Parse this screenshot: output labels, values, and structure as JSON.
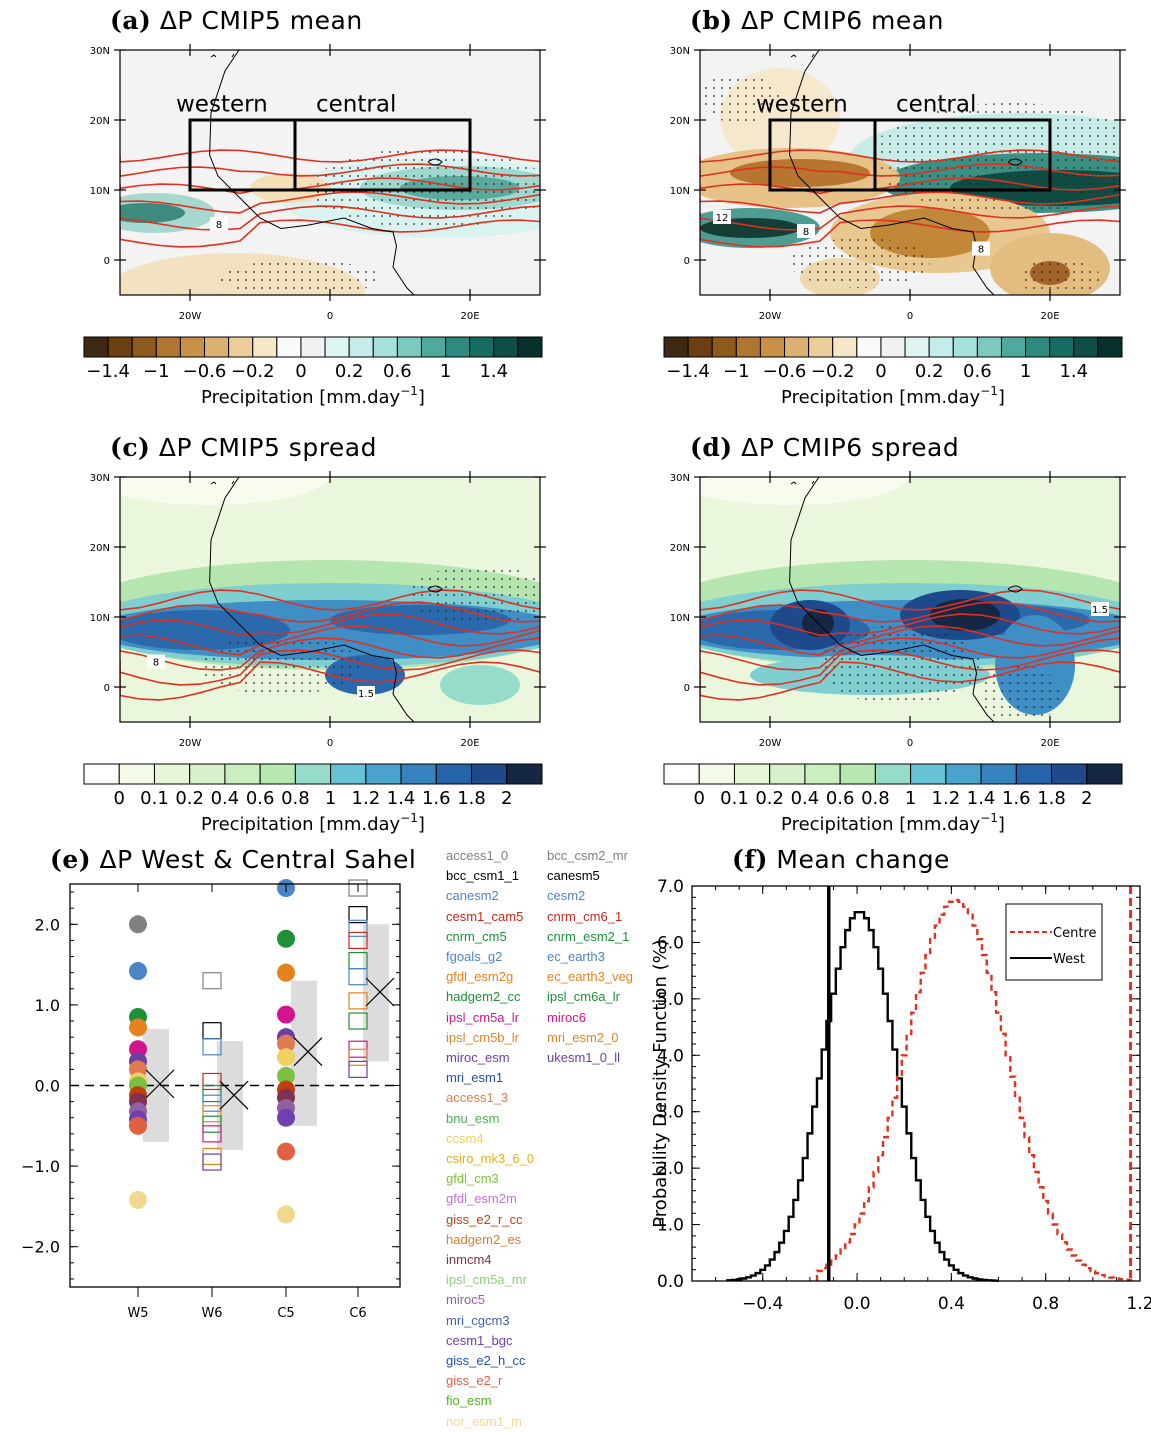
{
  "panels": {
    "a": {
      "letter": "(a)",
      "title": "ΔP CMIP5 mean"
    },
    "b": {
      "letter": "(b)",
      "title": "ΔP CMIP6 mean"
    },
    "c": {
      "letter": "(c)",
      "title": "ΔP CMIP5 spread"
    },
    "d": {
      "letter": "(d)",
      "title": "ΔP CMIP6 spread"
    },
    "e": {
      "letter": "(e)",
      "title": "ΔP West & Central Sahel"
    },
    "f": {
      "letter": "(f)",
      "title": "Mean change"
    }
  },
  "map": {
    "lat_labels": [
      "30N",
      "20N",
      "10N",
      "0"
    ],
    "lon_labels": [
      "20W",
      "0",
      "20E"
    ],
    "box_labels": {
      "western": "western",
      "central": "central"
    },
    "contour_labels": {
      "a": [
        "8"
      ],
      "b": [
        "12",
        "8",
        "8"
      ],
      "c": [
        "8",
        "1.5"
      ],
      "d": [
        "1.5"
      ]
    }
  },
  "colorbar_mean": {
    "labels": [
      "−1.4",
      "−1",
      "−0.6",
      "−0.2",
      "0",
      "0.2",
      "0.6",
      "1",
      "1.4"
    ],
    "title": "Precipitation [mm.day",
    "exp": "−1",
    "close": "]",
    "colors": [
      "#3e2a14",
      "#6b3f12",
      "#8e5a1c",
      "#b07530",
      "#c99148",
      "#dcb06e",
      "#ecce9a",
      "#f5e6c6",
      "#fafafa",
      "#f1f1f1",
      "#dff5f3",
      "#c4ede9",
      "#a6e2dc",
      "#7cc9bf",
      "#4fa99c",
      "#2e8a7e",
      "#186b60",
      "#0e4e44",
      "#06322b"
    ]
  },
  "colorbar_spread": {
    "labels": [
      "0",
      "0.1",
      "0.2",
      "0.4",
      "0.6",
      "0.8",
      "1",
      "1.2",
      "1.4",
      "1.6",
      "1.8",
      "2"
    ],
    "title": "Precipitation [mm.day",
    "exp": "−1",
    "close": "]",
    "colors": [
      "#ffffff",
      "#f4fbe9",
      "#e6f6d7",
      "#d8f1cb",
      "#cbeec0",
      "#b7e8b2",
      "#95dccb",
      "#66c2d4",
      "#4aa3cb",
      "#3582bc",
      "#2564a8",
      "#1e4a8b",
      "#162744"
    ]
  },
  "chart_data": [
    {
      "type": "scatter",
      "panel": "e",
      "categories": [
        "W5",
        "W6",
        "C5",
        "C6"
      ],
      "ylim": [
        -2.5,
        2.5
      ],
      "yticks": [
        "2.0",
        "1.0",
        "0.0",
        "−1.0",
        "−2.0"
      ],
      "ytick_values": [
        2,
        1,
        0,
        -1,
        -2
      ],
      "series": [
        {
          "name": "W5",
          "marker": "filled-circle",
          "values": [
            2.0,
            1.42,
            0.85,
            0.72,
            0.45,
            0.3,
            0.2,
            0.05,
            0.0,
            -0.12,
            -0.2,
            -0.32,
            -0.42,
            -0.5,
            -1.42
          ]
        },
        {
          "name": "W6",
          "marker": "open-square",
          "values": [
            1.3,
            0.68,
            0.48,
            0.05,
            -0.1,
            -0.22,
            -0.35,
            -0.48,
            -0.6,
            -0.88,
            -0.95
          ]
        },
        {
          "name": "C5",
          "marker": "filled-circle",
          "values": [
            2.45,
            1.82,
            1.4,
            0.88,
            0.6,
            0.52,
            0.35,
            0.12,
            -0.05,
            -0.15,
            -0.28,
            -0.4,
            -0.82,
            -1.6
          ]
        },
        {
          "name": "C6",
          "marker": "open-square",
          "values": [
            2.45,
            2.12,
            1.95,
            1.8,
            1.55,
            1.35,
            1.05,
            0.8,
            0.45,
            0.35,
            0.2
          ]
        }
      ],
      "multi_model_mean": {
        "W5": 0.02,
        "W6": -0.12,
        "C5": 0.42,
        "C6": 1.16
      },
      "spread_range": {
        "W5": [
          -0.7,
          0.7
        ],
        "W6": [
          -0.8,
          0.55
        ],
        "C5": [
          -0.5,
          1.3
        ],
        "C6": [
          0.3,
          2.0
        ]
      }
    },
    {
      "type": "line",
      "panel": "f",
      "xlabel": "",
      "ylabel": "Probability Density Function (%)",
      "xticks": [
        "−0.4",
        "0.0",
        "0.4",
        "0.8",
        "1.2"
      ],
      "xtick_values": [
        -0.4,
        0,
        0.4,
        0.8,
        1.2
      ],
      "yticks": [
        "0.0",
        "1.0",
        "2.0",
        "3.0",
        "4.0",
        "5.0",
        "6.0",
        "7.0"
      ],
      "ytick_values": [
        0,
        1,
        2,
        3,
        4,
        5,
        6,
        7
      ],
      "xlim": [
        -0.7,
        1.2
      ],
      "ylim": [
        0,
        7
      ],
      "series": [
        {
          "name": "West",
          "style": "solid-black",
          "center": 0.0,
          "peak": 6.55,
          "sd": 0.155,
          "x_from": -0.55,
          "x_to": 0.58
        },
        {
          "name": "Centre",
          "style": "dashed-red",
          "center": 0.41,
          "peak": 6.75,
          "sd": 0.215,
          "x_from": -0.17,
          "x_to": 1.15
        }
      ],
      "vlines": [
        {
          "series": "West",
          "x": -0.12
        },
        {
          "series": "Centre",
          "x": 1.16
        }
      ],
      "legend": [
        "Centre",
        "West"
      ],
      "legend_position": "top-right"
    }
  ],
  "model_legend": {
    "col1": [
      {
        "name": "access1_0",
        "color": "#808080"
      },
      {
        "name": "bcc_csm1_1",
        "color": "#000000"
      },
      {
        "name": "canesm2",
        "color": "#4a86c6"
      },
      {
        "name": "cesm1_cam5",
        "color": "#c8281e"
      },
      {
        "name": "cnrm_cm5",
        "color": "#1f8f38"
      },
      {
        "name": "fgoals_g2",
        "color": "#4a86c6"
      },
      {
        "name": "gfdl_esm2g",
        "color": "#e6821e"
      },
      {
        "name": "hadgem2_cc",
        "color": "#1f8f38"
      },
      {
        "name": "ipsl_cm5a_lr",
        "color": "#d4148c"
      },
      {
        "name": "ipsl_cm5b_lr",
        "color": "#e6821e"
      },
      {
        "name": "miroc_esm",
        "color": "#6b3fa0"
      },
      {
        "name": "mri_esm1",
        "color": "#1f4fa0"
      },
      {
        "name": "access1_3",
        "color": "#e07b50"
      },
      {
        "name": "bnu_esm",
        "color": "#4caf50"
      },
      {
        "name": "ccsm4",
        "color": "#f0d060"
      },
      {
        "name": "csiro_mk3_6_0",
        "color": "#e0b020"
      },
      {
        "name": "gfdl_cm3",
        "color": "#7cc040"
      },
      {
        "name": "gfdl_esm2m",
        "color": "#c870d0"
      },
      {
        "name": "giss_e2_r_cc",
        "color": "#c04010"
      },
      {
        "name": "hadgem2_es",
        "color": "#d08030"
      },
      {
        "name": "inmcm4",
        "color": "#803050"
      },
      {
        "name": "ipsl_cm5a_mr",
        "color": "#90d070"
      },
      {
        "name": "miroc5",
        "color": "#9060a0"
      },
      {
        "name": "mri_cgcm3",
        "color": "#4060b0"
      },
      {
        "name": "cesm1_bgc",
        "color": "#7040b0"
      },
      {
        "name": "giss_e2_h_cc",
        "color": "#2050b0"
      },
      {
        "name": "giss_e2_r",
        "color": "#e06040"
      },
      {
        "name": "fio_esm",
        "color": "#50b020"
      },
      {
        "name": "nor_esm1_m",
        "color": "#f0d890"
      }
    ],
    "col2": [
      {
        "name": "bcc_csm2_mr",
        "color": "#808080"
      },
      {
        "name": "canesm5",
        "color": "#000000"
      },
      {
        "name": "cesm2",
        "color": "#4a86c6"
      },
      {
        "name": "cnrm_cm6_1",
        "color": "#c8281e"
      },
      {
        "name": "cnrm_esm2_1",
        "color": "#1f8f38"
      },
      {
        "name": "ec_earth3",
        "color": "#4a86c6"
      },
      {
        "name": "ec_earth3_veg",
        "color": "#e6821e"
      },
      {
        "name": "ipsl_cm6a_lr",
        "color": "#1f8f38"
      },
      {
        "name": "miroc6",
        "color": "#d4148c"
      },
      {
        "name": "mri_esm2_0",
        "color": "#e6821e"
      },
      {
        "name": "ukesm1_0_ll",
        "color": "#6b3fa0"
      }
    ]
  }
}
